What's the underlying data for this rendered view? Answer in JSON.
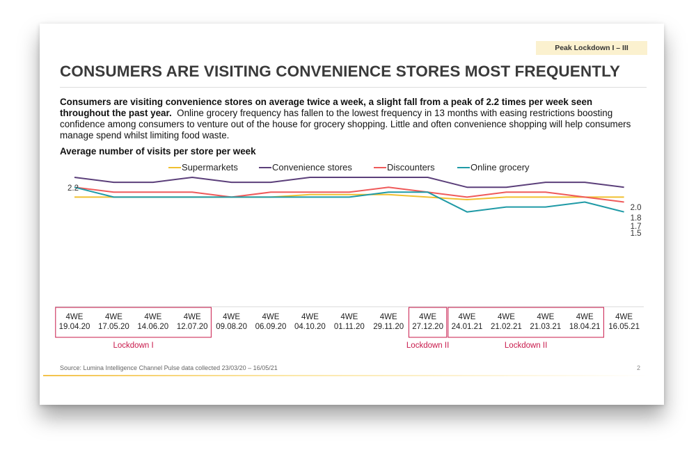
{
  "slide": {
    "tag": "Peak Lockdown I – III",
    "title": "CONSUMERS ARE VISITING CONVENIENCE STORES MOST FREQUENTLY",
    "desc_bold": "Consumers are visiting convenience stores on average twice a week, a slight fall from a peak of 2.2 times per week seen throughout the past year.",
    "desc_rest": "Online grocery frequency has fallen to the lowest frequency in 13 months with easing restrictions boosting confidence among consumers to venture out of the house for grocery shopping.  Little and often convenience shopping will help consumers manage spend whilst limiting food waste.",
    "chart_title": "Average number of visits per store per week",
    "source": "Source: Lumina Intelligence Channel Pulse data collected 23/03/20 – 16/05/21",
    "page_number": "2"
  },
  "chart_data": {
    "type": "line",
    "title": "Average number of visits per store per week",
    "category_prefix": "4WE",
    "categories": [
      "19.04.20",
      "17.05.20",
      "14.06.20",
      "12.07.20",
      "09.08.20",
      "06.09.20",
      "04.10.20",
      "01.11.20",
      "29.11.20",
      "27.12.20",
      "24.01.21",
      "21.02.21",
      "21.03.21",
      "18.04.21",
      "16.05.21"
    ],
    "ylim": [
      0.5,
      2.3
    ],
    "series": [
      {
        "name": "Supermarkets",
        "color": "#f0c030",
        "values": [
          1.8,
          1.8,
          1.8,
          1.8,
          1.8,
          1.8,
          1.85,
          1.85,
          1.85,
          1.8,
          1.75,
          1.8,
          1.8,
          1.8,
          1.8
        ]
      },
      {
        "name": "Convenience stores",
        "color": "#5b3f7a",
        "values": [
          2.2,
          2.1,
          2.1,
          2.2,
          2.1,
          2.1,
          2.2,
          2.2,
          2.2,
          2.2,
          2.0,
          2.0,
          2.1,
          2.1,
          2.0
        ]
      },
      {
        "name": "Discounters",
        "color": "#ef5a5a",
        "values": [
          2.0,
          1.9,
          1.9,
          1.9,
          1.8,
          1.9,
          1.9,
          1.9,
          2.0,
          1.9,
          1.8,
          1.9,
          1.9,
          1.8,
          1.7
        ]
      },
      {
        "name": "Online grocery",
        "color": "#1f9aa6",
        "values": [
          2.0,
          1.8,
          1.8,
          1.8,
          1.8,
          1.8,
          1.8,
          1.8,
          1.9,
          1.9,
          1.5,
          1.6,
          1.6,
          1.7,
          1.5
        ]
      }
    ],
    "data_labels": [
      {
        "text": "2.2",
        "series": "Convenience stores",
        "index": 0
      },
      {
        "text": "2.0",
        "series": "Convenience stores",
        "index": 14
      },
      {
        "text": "1.8",
        "series": "Supermarkets",
        "index": 14
      },
      {
        "text": "1.7",
        "series": "Discounters",
        "index": 14
      },
      {
        "text": "1.5",
        "series": "Online grocery",
        "index": 14
      }
    ],
    "groups": [
      {
        "label": "Lockdown I",
        "from": 0,
        "to": 3,
        "color": "#c8184a"
      },
      {
        "label": "Lockdown II",
        "from": 9,
        "to": 9,
        "color": "#c8184a"
      },
      {
        "label": "Lockdown II",
        "from": 10,
        "to": 13,
        "color": "#c8184a"
      }
    ],
    "legend_position": "top",
    "grid": false
  }
}
